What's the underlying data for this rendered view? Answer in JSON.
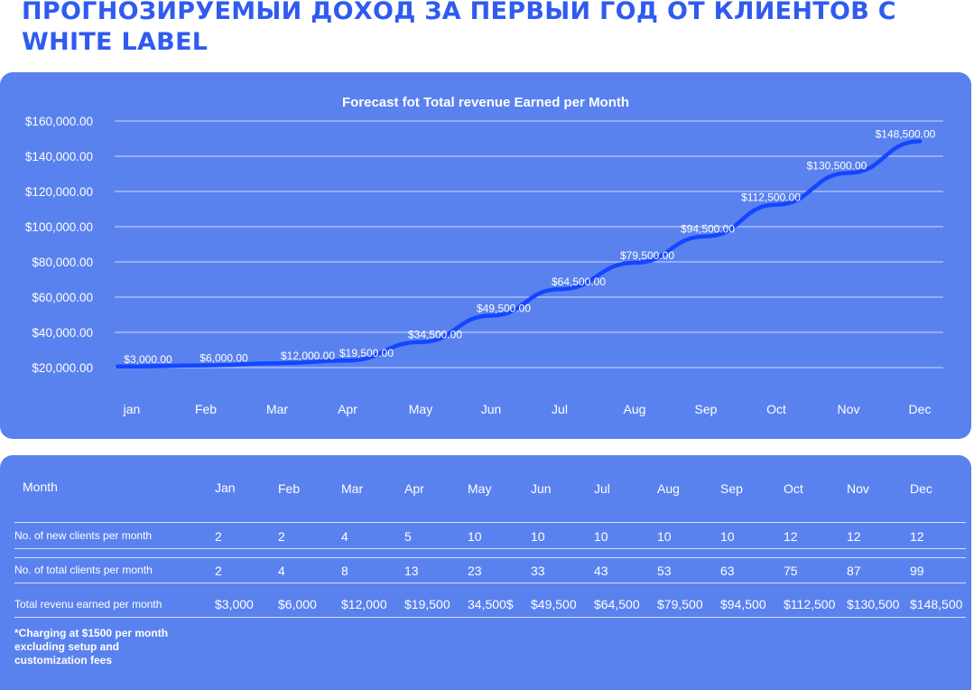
{
  "page": {
    "title": "ПРОГНОЗИРУЕМЫЙ ДОХОД ЗА ПЕРВЫЙ ГОД ОТ КЛИЕНТОВ С WHITE LABEL"
  },
  "colors": {
    "accent": "#2f5bf0",
    "card": "#5a82ef",
    "line": "#1446ff",
    "text": "#ffffff"
  },
  "chart_data": {
    "type": "line",
    "title": "Forecast fot Total revenue Earned per Month",
    "xlabel": "",
    "ylabel": "",
    "categories": [
      "jan",
      "Feb",
      "Mar",
      "Apr",
      "May",
      "Jun",
      "Jul",
      "Aug",
      "Sep",
      "Oct",
      "Nov",
      "Dec"
    ],
    "values": [
      3000,
      6000,
      12000,
      19500,
      34500,
      49500,
      64500,
      79500,
      94500,
      112500,
      130500,
      148500
    ],
    "data_labels": [
      "$3,000.00",
      "$6,000.00",
      "$12,000.00",
      "$19,500.00",
      "$34,500.00",
      "$49,500.00",
      "$64,500.00",
      "$79,500.00",
      "$94,500.00",
      "$112,500.00",
      "$130,500.00",
      "$148,500.00"
    ],
    "yticks": [
      20000,
      40000,
      60000,
      80000,
      100000,
      120000,
      140000,
      160000
    ],
    "ytick_labels": [
      "$20,000.00",
      "$40,000.00",
      "$60,000.00",
      "$80,000.00",
      "$100,000.00",
      "$120,000.00",
      "$140,000.00",
      "$160,000.00"
    ],
    "ylim": [
      0,
      160000
    ],
    "grid": true,
    "legend": "none"
  },
  "table": {
    "month_header": "Month",
    "months": [
      "Jan",
      "Feb",
      "Mar",
      "Apr",
      "May",
      "Jun",
      "Jul",
      "Aug",
      "Sep",
      "Oct",
      "Nov",
      "Dec"
    ],
    "rows": [
      {
        "label": "No. of new clients per month",
        "values": [
          "2",
          "2",
          "4",
          "5",
          "10",
          "10",
          "10",
          "10",
          "10",
          "12",
          "12",
          "12"
        ]
      },
      {
        "label": "No. of total clients per month",
        "values": [
          "2",
          "4",
          "8",
          "13",
          "23",
          "33",
          "43",
          "53",
          "63",
          "75",
          "87",
          "99"
        ]
      },
      {
        "label": "Total revenu earned per month",
        "values": [
          "$3,000",
          "$6,000",
          "$12,000",
          "$19,500",
          "34,500$",
          "$49,500",
          "$64,500",
          "$79,500",
          "$94,500",
          "$112,500",
          "$130,500",
          "$148,500"
        ]
      }
    ],
    "footnote": "*Charging at $1500 per month excluding setup and customization fees"
  }
}
